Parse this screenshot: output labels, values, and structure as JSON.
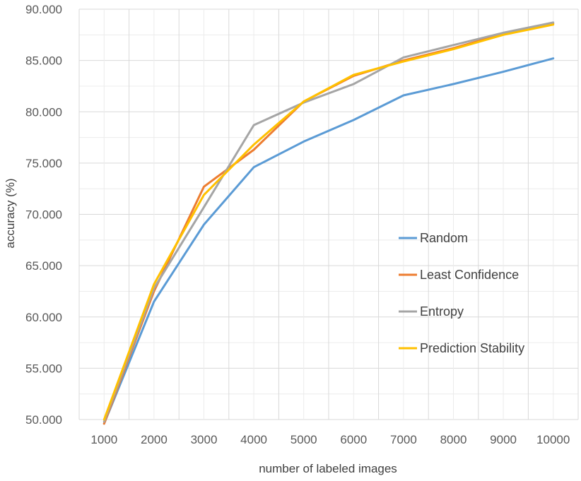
{
  "chart_data": {
    "type": "line",
    "title": "",
    "xlabel": "number of labeled images",
    "ylabel": "accuracy (%)",
    "x": [
      1000,
      2000,
      3000,
      4000,
      5000,
      6000,
      7000,
      8000,
      9000,
      10000
    ],
    "x_tick_labels": [
      "1000",
      "2000",
      "3000",
      "4000",
      "5000",
      "6000",
      "7000",
      "8000",
      "9000",
      "10000"
    ],
    "y_ticks": [
      50,
      55,
      60,
      65,
      70,
      75,
      80,
      85,
      90
    ],
    "y_tick_labels": [
      "50.000",
      "55.000",
      "60.000",
      "65.000",
      "70.000",
      "75.000",
      "80.000",
      "85.000",
      "90.000"
    ],
    "ylim": [
      50,
      90
    ],
    "grid": true,
    "legend_position": "right-center",
    "series": [
      {
        "name": "Random",
        "color": "#5b9bd5",
        "values": [
          49.6,
          61.5,
          69.0,
          74.6,
          77.1,
          79.2,
          81.6,
          82.7,
          83.9,
          85.2
        ]
      },
      {
        "name": "Least Confidence",
        "color": "#ed7d31",
        "values": [
          49.6,
          62.5,
          72.7,
          76.3,
          81.0,
          83.5,
          85.0,
          86.2,
          87.6,
          88.6
        ]
      },
      {
        "name": "Entropy",
        "color": "#a5a5a5",
        "values": [
          49.8,
          62.8,
          70.7,
          78.7,
          80.9,
          82.7,
          85.3,
          86.5,
          87.7,
          88.7
        ]
      },
      {
        "name": "Prediction Stability",
        "color": "#ffc000",
        "values": [
          50.0,
          63.2,
          71.9,
          76.8,
          81.0,
          83.6,
          84.9,
          86.1,
          87.5,
          88.5
        ]
      }
    ]
  }
}
